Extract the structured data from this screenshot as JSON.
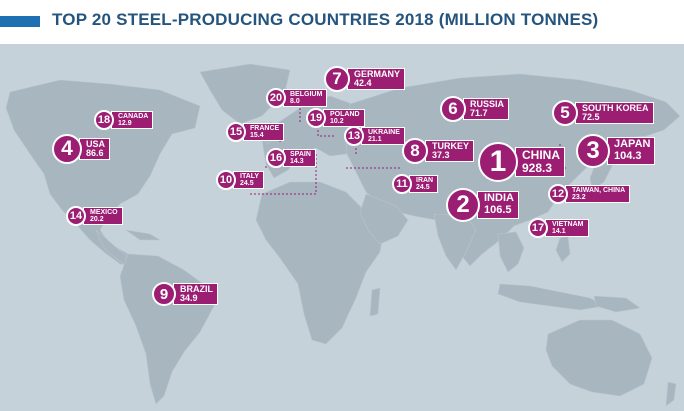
{
  "title": "TOP 20 STEEL-PRODUCING COUNTRIES 2018 (MILLION TONNES)",
  "colors": {
    "accent": "#1f6fb3",
    "title": "#25557e",
    "marker": "#9b1e73",
    "ocean": "#c6d2da",
    "land": "#a8b6c0"
  },
  "countries": [
    {
      "rank": "1",
      "name": "CHINA",
      "value": "928.3"
    },
    {
      "rank": "2",
      "name": "INDIA",
      "value": "106.5"
    },
    {
      "rank": "3",
      "name": "JAPAN",
      "value": "104.3"
    },
    {
      "rank": "4",
      "name": "USA",
      "value": "86.6"
    },
    {
      "rank": "5",
      "name": "SOUTH KOREA",
      "value": "72.5"
    },
    {
      "rank": "6",
      "name": "RUSSIA",
      "value": "71.7"
    },
    {
      "rank": "7",
      "name": "GERMANY",
      "value": "42.4"
    },
    {
      "rank": "8",
      "name": "TURKEY",
      "value": "37.3"
    },
    {
      "rank": "9",
      "name": "BRAZIL",
      "value": "34.9"
    },
    {
      "rank": "10",
      "name": "ITALY",
      "value": "24.5"
    },
    {
      "rank": "11",
      "name": "IRAN",
      "value": "24.5"
    },
    {
      "rank": "12",
      "name": "TAIWAN, CHINA",
      "value": "23.2"
    },
    {
      "rank": "13",
      "name": "UKRAINE",
      "value": "21.1"
    },
    {
      "rank": "14",
      "name": "MEXICO",
      "value": "20.2"
    },
    {
      "rank": "15",
      "name": "FRANCE",
      "value": "15.4"
    },
    {
      "rank": "16",
      "name": "SPAIN",
      "value": "14.3"
    },
    {
      "rank": "17",
      "name": "VIETNAM",
      "value": "14.1"
    },
    {
      "rank": "18",
      "name": "CANADA",
      "value": "12.9"
    },
    {
      "rank": "19",
      "name": "POLAND",
      "value": "10.2"
    },
    {
      "rank": "20",
      "name": "BELGIUM",
      "value": "8.0"
    }
  ]
}
